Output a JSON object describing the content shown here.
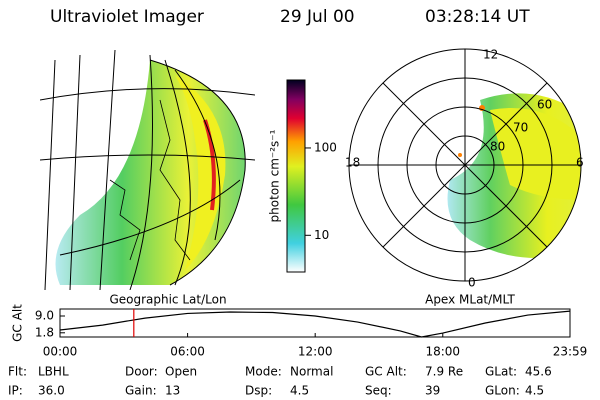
{
  "header": {
    "title": "Ultraviolet Imager",
    "date": "29 Jul 00",
    "time": "03:28:14 UT"
  },
  "geo_panel": {
    "label": "Geographic Lat/Lon"
  },
  "polar_panel": {
    "label": "Apex MLat/MLT",
    "mlt_labels": [
      "12",
      "18",
      "0",
      "6"
    ],
    "lat_labels": [
      "60",
      "70",
      "80"
    ]
  },
  "colorbar": {
    "label": "photon cm⁻²s⁻¹",
    "log_scale": true,
    "zlim": [
      3.8,
      600
    ],
    "zticks": [
      10,
      100
    ]
  },
  "chart_data": {
    "type": "line",
    "y_label": "GC Alt",
    "color": "#000000",
    "marker_color": "#e00000",
    "current_time": 3.471,
    "x": [
      0,
      2,
      4,
      6,
      8,
      10,
      12,
      14,
      16,
      17,
      18,
      20,
      22,
      23.983
    ],
    "values": [
      3.0,
      5.1,
      8.1,
      10.1,
      10.7,
      10.5,
      9.0,
      6.4,
      2.6,
      0,
      1.7,
      6.0,
      9.4,
      11.1
    ],
    "xlim": [
      0,
      23.983
    ],
    "ylim": [
      0,
      12
    ],
    "xticks": [
      {
        "value": 0,
        "label": "00:00"
      },
      {
        "value": 6,
        "label": "06:00"
      },
      {
        "value": 12,
        "label": "12:00"
      },
      {
        "value": 18,
        "label": "18:00"
      },
      {
        "value": 23.983,
        "label": "23:59"
      }
    ],
    "yticks": [
      {
        "value": 9,
        "label": "9.0"
      },
      1.8
    ]
  },
  "footer": {
    "rows": [
      [
        {
          "label": "Flt:",
          "value": "LBHL"
        },
        {
          "label": "Door:",
          "value": "Open"
        },
        {
          "label": "Mode:",
          "value": "Normal"
        },
        {
          "label": "GC Alt:",
          "value": "7.9 Re"
        },
        {
          "label": "GLat:",
          "value": "45.6"
        }
      ],
      [
        {
          "label": "IP:",
          "value": "36.0"
        },
        {
          "label": "Gain:",
          "value": "13"
        },
        {
          "label": "Dsp:",
          "value": "4.5"
        },
        {
          "label": "Seq:",
          "value": "39"
        },
        {
          "label": "GLon:",
          "value": "4.5"
        }
      ]
    ]
  }
}
